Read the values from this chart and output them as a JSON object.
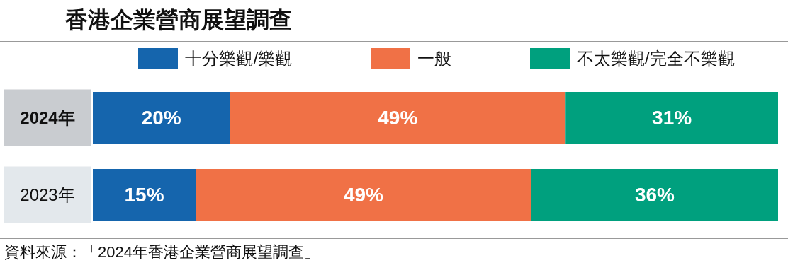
{
  "chart_data": {
    "type": "bar",
    "orientation": "horizontal",
    "stacked": true,
    "title": "香港企業營商展望調查",
    "categories": [
      "2024年",
      "2023年"
    ],
    "series": [
      {
        "name": "十分樂觀/樂觀",
        "color": "#1565ad",
        "values": [
          20,
          15
        ],
        "value_labels": [
          "20%",
          "15%"
        ]
      },
      {
        "name": "一般",
        "color": "#f07146",
        "values": [
          49,
          49
        ],
        "value_labels": [
          "49%",
          "49%"
        ]
      },
      {
        "name": "不太樂觀/完全不樂觀",
        "color": "#00a07e",
        "values": [
          31,
          36
        ],
        "value_labels": [
          "31%",
          "36%"
        ]
      }
    ],
    "legend": "top",
    "annotations": [
      "資料來源：「2024年香港企業營商展望調查」"
    ]
  }
}
